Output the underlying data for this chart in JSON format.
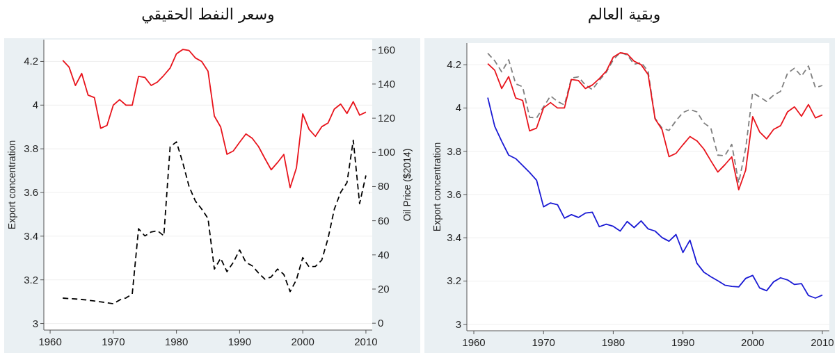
{
  "chart_data": [
    {
      "type": "line",
      "title": "وسعر النفط الحقيقي",
      "ylabel": "Export concentration",
      "y2label": "Oil Price ($2014)",
      "x": [
        1962,
        1963,
        1964,
        1965,
        1966,
        1967,
        1968,
        1969,
        1970,
        1971,
        1972,
        1973,
        1974,
        1975,
        1976,
        1977,
        1978,
        1979,
        1980,
        1981,
        1982,
        1983,
        1984,
        1985,
        1986,
        1987,
        1988,
        1989,
        1990,
        1991,
        1992,
        1993,
        1994,
        1995,
        1996,
        1997,
        1998,
        1999,
        2000,
        2001,
        2002,
        2003,
        2004,
        2005,
        2006,
        2007,
        2008,
        2009,
        2010
      ],
      "xlim": [
        1959,
        2011
      ],
      "xticks": [
        1960,
        1970,
        1980,
        1990,
        2000,
        2010
      ],
      "ylim": [
        2.97,
        4.3
      ],
      "yticks": [
        3,
        3.2,
        3.4,
        3.6,
        3.8,
        4,
        4.2
      ],
      "y2lim": [
        -4,
        166
      ],
      "y2ticks": [
        0,
        20,
        40,
        60,
        80,
        100,
        120,
        140,
        160
      ],
      "grid": "y",
      "series": [
        {
          "color": "#e8141c",
          "line_style": "solid",
          "values": [
            4.205,
            4.174,
            4.09,
            4.145,
            4.046,
            4.035,
            3.894,
            3.907,
            4.0,
            4.025,
            4.0,
            4.0,
            4.132,
            4.127,
            4.09,
            4.106,
            4.136,
            4.17,
            4.235,
            4.255,
            4.25,
            4.216,
            4.2,
            4.155,
            3.95,
            3.9,
            3.775,
            3.79,
            3.83,
            3.868,
            3.848,
            3.81,
            3.756,
            3.704,
            3.737,
            3.774,
            3.622,
            3.713,
            3.96,
            3.889,
            3.857,
            3.901,
            3.918,
            3.982,
            4.005,
            3.962,
            4.016,
            3.954,
            3.968
          ]
        },
        {
          "color": "#000000",
          "line_style": "dashed",
          "axis": "y2",
          "values": [
            14.7,
            14.4,
            14.2,
            13.9,
            13.5,
            13.0,
            12.5,
            12.0,
            11.4,
            13.6,
            14.8,
            17.1,
            55.3,
            51.1,
            53.4,
            54.1,
            51.2,
            103.3,
            106.1,
            94,
            80,
            71.5,
            66.8,
            61.3,
            31.7,
            38.0,
            30.2,
            35.6,
            42.9,
            35.6,
            33.6,
            29.4,
            25.8,
            27.1,
            31.7,
            28.6,
            18.5,
            25.5,
            38.4,
            33.0,
            33.3,
            36.9,
            49.6,
            66.8,
            76.6,
            82.3,
            107.1,
            70,
            86.5
          ]
        }
      ]
    },
    {
      "type": "line",
      "title": "وبقية العالم",
      "ylabel": "Export concentration",
      "x": [
        1962,
        1963,
        1964,
        1965,
        1966,
        1967,
        1968,
        1969,
        1970,
        1971,
        1972,
        1973,
        1974,
        1975,
        1976,
        1977,
        1978,
        1979,
        1980,
        1981,
        1982,
        1983,
        1984,
        1985,
        1986,
        1987,
        1988,
        1989,
        1990,
        1991,
        1992,
        1993,
        1994,
        1995,
        1996,
        1997,
        1998,
        1999,
        2000,
        2001,
        2002,
        2003,
        2004,
        2005,
        2006,
        2007,
        2008,
        2009,
        2010
      ],
      "xlim": [
        1959,
        2011
      ],
      "xticks": [
        1960,
        1970,
        1980,
        1990,
        2000,
        2010
      ],
      "ylim": [
        2.97,
        4.3
      ],
      "yticks": [
        3,
        3.2,
        3.4,
        3.6,
        3.8,
        4,
        4.2
      ],
      "grid": "y",
      "series": [
        {
          "color": "#7f7f7f",
          "line_style": "dashed",
          "values": [
            4.253,
            4.218,
            4.167,
            4.223,
            4.112,
            4.098,
            3.957,
            3.954,
            4.005,
            4.056,
            4.03,
            4.014,
            4.138,
            4.144,
            4.106,
            4.085,
            4.128,
            4.165,
            4.223,
            4.257,
            4.245,
            4.202,
            4.21,
            4.17,
            3.952,
            3.907,
            3.896,
            3.941,
            3.979,
            3.993,
            3.982,
            3.931,
            3.907,
            3.782,
            3.779,
            3.832,
            3.654,
            3.814,
            4.071,
            4.051,
            4.03,
            4.059,
            4.077,
            4.16,
            4.184,
            4.147,
            4.194,
            4.094,
            4.104
          ]
        },
        {
          "color": "#e8141c",
          "line_style": "solid",
          "values": [
            4.205,
            4.174,
            4.09,
            4.145,
            4.046,
            4.035,
            3.894,
            3.907,
            4.0,
            4.025,
            4.0,
            4.0,
            4.132,
            4.127,
            4.09,
            4.106,
            4.136,
            4.17,
            4.235,
            4.255,
            4.25,
            4.216,
            4.2,
            4.155,
            3.95,
            3.9,
            3.775,
            3.79,
            3.83,
            3.868,
            3.848,
            3.81,
            3.756,
            3.704,
            3.737,
            3.774,
            3.622,
            3.713,
            3.96,
            3.889,
            3.857,
            3.901,
            3.918,
            3.982,
            4.005,
            3.962,
            4.016,
            3.954,
            3.968
          ]
        },
        {
          "color": "#1a1ad4",
          "line_style": "solid",
          "values": [
            4.048,
            3.915,
            3.846,
            3.782,
            3.766,
            3.734,
            3.702,
            3.666,
            3.543,
            3.561,
            3.553,
            3.491,
            3.507,
            3.494,
            3.514,
            3.518,
            3.451,
            3.463,
            3.453,
            3.431,
            3.475,
            3.447,
            3.478,
            3.441,
            3.431,
            3.401,
            3.384,
            3.415,
            3.332,
            3.389,
            3.282,
            3.241,
            3.22,
            3.201,
            3.181,
            3.175,
            3.173,
            3.212,
            3.226,
            3.168,
            3.155,
            3.196,
            3.215,
            3.205,
            3.184,
            3.188,
            3.133,
            3.121,
            3.135
          ]
        }
      ]
    }
  ]
}
